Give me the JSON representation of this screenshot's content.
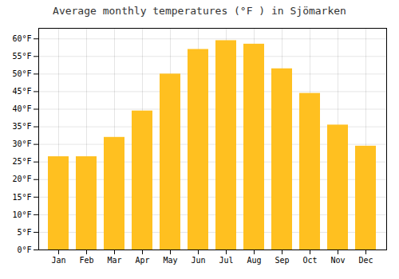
{
  "chart_data": {
    "type": "bar",
    "title": "Average monthly temperatures (°F ) in Sjömarken",
    "categories": [
      "Jan",
      "Feb",
      "Mar",
      "Apr",
      "May",
      "Jun",
      "Jul",
      "Aug",
      "Sep",
      "Oct",
      "Nov",
      "Dec"
    ],
    "values": [
      26.5,
      26.5,
      32.0,
      39.5,
      50.0,
      57.0,
      59.5,
      58.5,
      51.5,
      44.5,
      35.5,
      29.5
    ],
    "color": "#FFC020",
    "ylim": [
      0,
      63
    ],
    "yticks": [
      {
        "value": 0,
        "label": "0°F"
      },
      {
        "value": 5,
        "label": "5°F"
      },
      {
        "value": 10,
        "label": "10°F"
      },
      {
        "value": 15,
        "label": "15°F"
      },
      {
        "value": 20,
        "label": "20°F"
      },
      {
        "value": 25,
        "label": "25°F"
      },
      {
        "value": 30,
        "label": "30°F"
      },
      {
        "value": 35,
        "label": "35°F"
      },
      {
        "value": 40,
        "label": "40°F"
      },
      {
        "value": 45,
        "label": "45°F"
      },
      {
        "value": 50,
        "label": "50°F"
      },
      {
        "value": 55,
        "label": "55°F"
      },
      {
        "value": 60,
        "label": "60°F"
      }
    ],
    "grid": true
  }
}
